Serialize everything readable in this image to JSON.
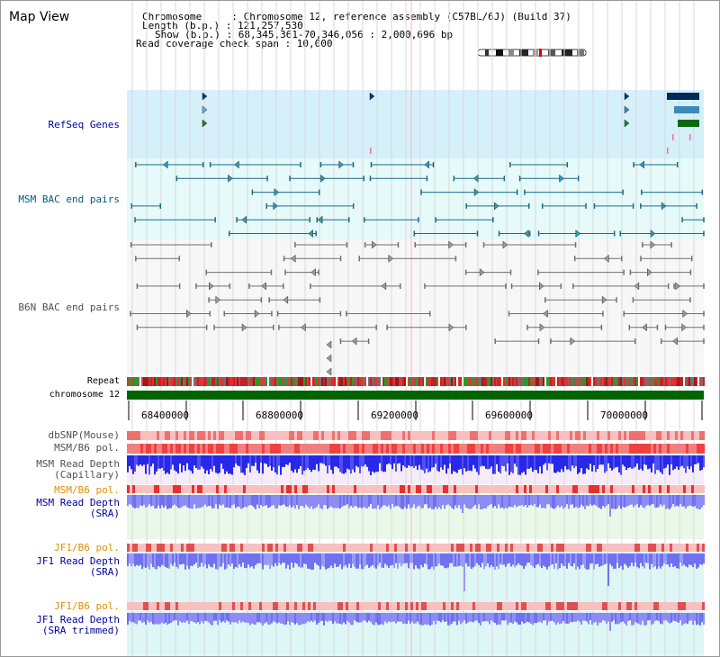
{
  "title": "Map View",
  "header": {
    "chromosome": "Chromosome     : Chromosome 12, reference assembly (C57BL/6J) (Build 37)",
    "length": "Length (b.p.) : 121,257,530",
    "show": "Show (b.p.) : 68,345,361-70,346,056 : 2,000,696 bp",
    "read_coverage": "Read coverage check span : 10,000"
  },
  "tracks": {
    "refseq": "RefSeq Genes",
    "msm_bac": "MSM BAC end pairs",
    "b6n_bac": "B6N BAC end pairs",
    "repeat": "Repeat",
    "chromosome": "chromosome 12",
    "dbsnp": "dbSNP(Mouse)",
    "msm_b6_pol": "MSM/B6 pol.",
    "msm_depth_cap_1": "MSM Read Depth",
    "msm_depth_cap_2": "(Capillary)",
    "msm_b6_pol_2": "MSM/B6 pol.",
    "msm_depth_sra_1": "MSM Read Depth",
    "msm_depth_sra_2": "(SRA)",
    "jf1_b6_pol": "JF1/B6 pol.",
    "jf1_depth_sra_1": "JF1 Read Depth",
    "jf1_depth_sra_2": "(SRA)",
    "jf1_b6_pol_2": "JF1/B6 pol.",
    "jf1_depth_trim_1": "JF1 Read Depth",
    "jf1_depth_trim_2": "(SRA trimmed)"
  },
  "axis_ticks": [
    "68400000",
    "68800000",
    "69200000",
    "69600000",
    "70000000"
  ],
  "colors": {
    "label_blue": "#0000a0",
    "label_teal": "#005a78",
    "label_gray": "#505050",
    "label_orange": "#e09000",
    "chromosome_bar": "#006400",
    "depth_blue": "#2a2aee",
    "depth_light": "#8c8cf4",
    "refseq_bg": "#d5f0fa",
    "bac_bg": "#e6fafa",
    "pol_red": "#f06060"
  }
}
